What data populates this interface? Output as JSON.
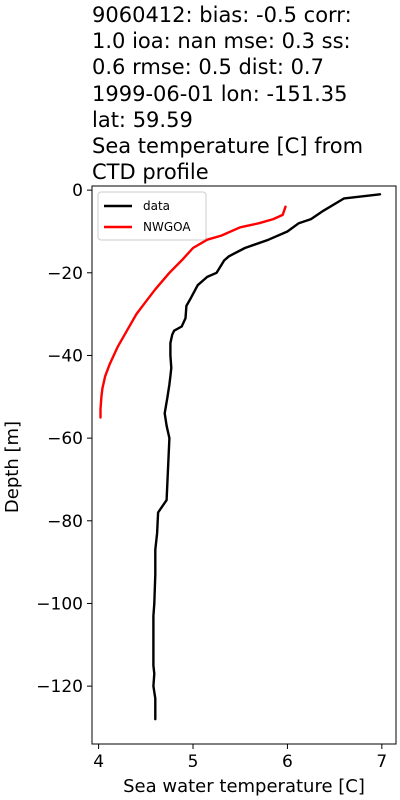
{
  "chart_data": {
    "type": "line",
    "title": "9060412: bias: -0.5  corr: 1.0  ioa: nan  mse: 0.3  ss: 0.6  rmse: 0.5  dist: 0.7 1999-06-01 lon: -151.35 lat: 59.59 Sea temperature [C] from CTD profile",
    "title_lines": [
      "9060412: bias: -0.5  corr:",
      "1.0  ioa: nan  mse: 0.3  ss:",
      "0.6  rmse: 0.5  dist: 0.7",
      "1999-06-01 lon: -151.35",
      "lat: 59.59",
      "Sea temperature [C] from",
      "CTD profile"
    ],
    "xlabel": "Sea water temperature [C]",
    "ylabel": "Depth [m]",
    "xlim": [
      3.93,
      7.15
    ],
    "ylim": [
      -134,
      1
    ],
    "xticks": [
      4,
      5,
      6,
      7
    ],
    "yticks": [
      0,
      -20,
      -40,
      -60,
      -80,
      -100,
      -120
    ],
    "grid": false,
    "legend_position": "upper-left",
    "series": [
      {
        "name": "data",
        "color": "#000000",
        "x": [
          6.98,
          6.6,
          6.38,
          6.25,
          6.12,
          6.0,
          5.8,
          5.55,
          5.38,
          5.33,
          5.25,
          5.15,
          5.05,
          4.98,
          4.93,
          4.92,
          4.88,
          4.8,
          4.78,
          4.76,
          4.76,
          4.77,
          4.76,
          4.75,
          4.73,
          4.7,
          4.72,
          4.75,
          4.72,
          4.63,
          4.62,
          4.6,
          4.6,
          4.59,
          4.58,
          4.58,
          4.58,
          4.58,
          4.59,
          4.58,
          4.6,
          4.6
        ],
        "y": [
          -1,
          -2,
          -5,
          -7,
          -8,
          -10,
          -12,
          -14,
          -16,
          -17,
          -20,
          -21,
          -23,
          -26,
          -28,
          -31,
          -33,
          -34,
          -35,
          -37,
          -40,
          -43,
          -45,
          -47,
          -50,
          -54,
          -57,
          -60,
          -75,
          -78,
          -83,
          -87,
          -93,
          -100,
          -103,
          -108,
          -112,
          -115,
          -117,
          -120,
          -123,
          -128
        ]
      },
      {
        "name": "NWGOA",
        "color": "#ff0000",
        "x": [
          5.98,
          5.95,
          5.85,
          5.7,
          5.5,
          5.3,
          5.15,
          5.0,
          4.88,
          4.75,
          4.6,
          4.5,
          4.4,
          4.3,
          4.2,
          4.12,
          4.07,
          4.04,
          4.03,
          4.02,
          4.02
        ],
        "y": [
          -4,
          -6,
          -7,
          -8,
          -9,
          -11,
          -12,
          -14,
          -17,
          -20,
          -24,
          -27,
          -30,
          -34,
          -38,
          -42,
          -45,
          -48,
          -50,
          -53,
          -55
        ]
      }
    ]
  }
}
